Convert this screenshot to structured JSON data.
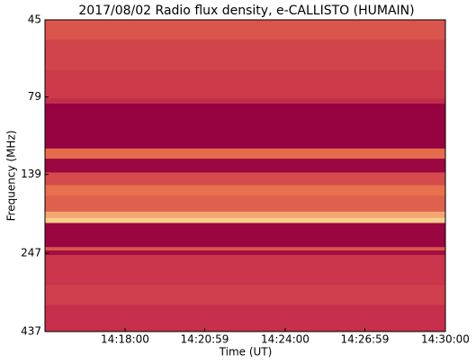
{
  "chart_data": {
    "type": "spectrogram",
    "title": "2017/08/02  Radio flux density, e-CALLISTO (HUMAIN)",
    "x_label": "Time (UT)",
    "y_label": "Frequency (MHz)",
    "xlim": [
      "14:15:00",
      "14:30:00"
    ],
    "xticks": [
      "14:18:00",
      "14:20:59",
      "14:24:00",
      "14:26:59",
      "14:30:00"
    ],
    "ylim": [
      45,
      437
    ],
    "yticks": [
      45,
      79,
      139,
      247,
      437
    ],
    "y_scale": "log",
    "y_inverted": true,
    "colormap": [
      "#93003f",
      "#c8314b",
      "#ec7a4e",
      "#fde7a0"
    ],
    "bands": [
      {
        "low": 45,
        "high": 52,
        "intensity": 0.5
      },
      {
        "low": 52,
        "high": 65,
        "intensity": 0.42
      },
      {
        "low": 65,
        "high": 80,
        "intensity": 0.38
      },
      {
        "low": 80,
        "high": 83,
        "intensity": 0.3
      },
      {
        "low": 83,
        "high": 115,
        "intensity": 0.02
      },
      {
        "low": 115,
        "high": 124,
        "intensity": 0.6
      },
      {
        "low": 124,
        "high": 137,
        "intensity": 0.05
      },
      {
        "low": 137,
        "high": 150,
        "intensity": 0.45
      },
      {
        "low": 150,
        "high": 163,
        "intensity": 0.62
      },
      {
        "low": 163,
        "high": 182,
        "intensity": 0.55
      },
      {
        "low": 182,
        "high": 190,
        "intensity": 0.8
      },
      {
        "low": 190,
        "high": 198,
        "intensity": 0.92
      },
      {
        "low": 198,
        "high": 236,
        "intensity": 0.04
      },
      {
        "low": 236,
        "high": 242,
        "intensity": 0.5
      },
      {
        "low": 242,
        "high": 250,
        "intensity": 0.1
      },
      {
        "low": 250,
        "high": 310,
        "intensity": 0.35
      },
      {
        "low": 310,
        "high": 360,
        "intensity": 0.4
      },
      {
        "low": 360,
        "high": 437,
        "intensity": 0.32
      }
    ]
  }
}
